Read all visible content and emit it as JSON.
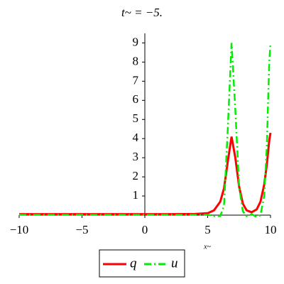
{
  "chart_data": {
    "type": "line",
    "title": "t~ = −5.",
    "x_label": "x~",
    "x": [
      -10,
      -8,
      -6,
      -4,
      -2,
      0,
      2,
      4,
      5,
      5.5,
      6,
      6.3,
      6.6,
      6.9,
      7.2,
      7.5,
      7.8,
      8.1,
      8.5,
      8.9,
      9.2,
      9.5,
      9.7,
      9.9,
      10
    ],
    "series": [
      {
        "name": "q",
        "color": "#ff0000",
        "style": "solid",
        "values": [
          0.05,
          0.05,
          0.05,
          0.05,
          0.05,
          0.05,
          0.05,
          0.06,
          0.1,
          0.25,
          0.7,
          1.4,
          2.8,
          4.1,
          3.0,
          1.5,
          0.6,
          0.25,
          0.15,
          0.3,
          0.7,
          1.6,
          2.6,
          3.9,
          4.3
        ]
      },
      {
        "name": "u",
        "color": "#00ee00",
        "style": "dashdot",
        "values": [
          0.02,
          0.02,
          0.02,
          0.02,
          0.02,
          0.02,
          0.02,
          0.02,
          0.02,
          -0.05,
          -0.05,
          0.5,
          4.5,
          9,
          5.5,
          1.5,
          0.2,
          -0.05,
          0.05,
          -0.1,
          0.0,
          1.0,
          3.5,
          8.0,
          9.0
        ]
      }
    ],
    "xlim": [
      -10,
      10
    ],
    "ylim": [
      0,
      9.5
    ],
    "xticks": [
      {
        "value": -10,
        "label": "−10"
      },
      {
        "value": -5,
        "label": "−5"
      },
      0,
      5,
      10
    ],
    "yticks": [
      1,
      2,
      3,
      4,
      5,
      6,
      7,
      8,
      9
    ],
    "legend": "bottom"
  }
}
